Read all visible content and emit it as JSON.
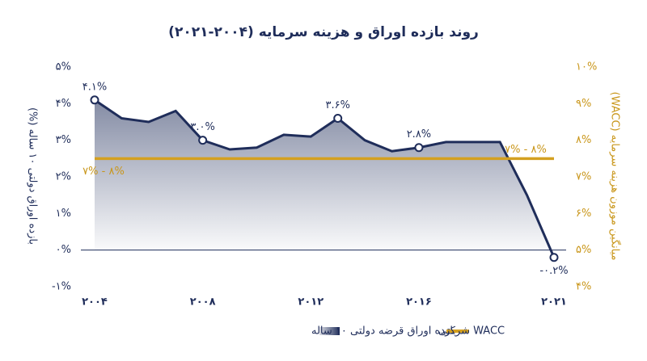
{
  "chart_data": {
    "type": "line",
    "title": "روند بازده اوراق و هزینه سرمایه (۲۰۰۴-۲۰۲۱)",
    "y_label": "بازده اوراق دولتی ۱۰ ساله (%)",
    "y2_label": "میانگین موزون هزینه سرمایه (WACC)",
    "annotation": "۷% - ۸%",
    "x": [
      2004,
      2005,
      2006,
      2007,
      2008,
      2009,
      2010,
      2011,
      2012,
      2013,
      2014,
      2015,
      2016,
      2017,
      2018,
      2019,
      2020,
      2021
    ],
    "xlim": [
      2004,
      2021
    ],
    "xticks": [
      {
        "value": 2004,
        "label": "۲۰۰۴"
      },
      {
        "value": 2008,
        "label": "۲۰۰۸"
      },
      {
        "value": 2012,
        "label": "۲۰۱۲"
      },
      {
        "value": 2016,
        "label": "۲۰۱۶"
      },
      {
        "value": 2021,
        "label": "۲۰۲۱"
      }
    ],
    "ylim": [
      -1,
      5
    ],
    "yticks": [
      {
        "value": -1,
        "label": "-۱%"
      },
      {
        "value": 0,
        "label": "۰%"
      },
      {
        "value": 1,
        "label": "۱%"
      },
      {
        "value": 2,
        "label": "۲%"
      },
      {
        "value": 3,
        "label": "۳%"
      },
      {
        "value": 4,
        "label": "۴%"
      },
      {
        "value": 5,
        "label": "۵%"
      }
    ],
    "y2lim": [
      4,
      10
    ],
    "y2ticks": [
      {
        "value": 4,
        "label": "۴%"
      },
      {
        "value": 5,
        "label": "۵%"
      },
      {
        "value": 6,
        "label": "۶%"
      },
      {
        "value": 7,
        "label": "۷%"
      },
      {
        "value": 8,
        "label": "۸%"
      },
      {
        "value": 9,
        "label": "۹%"
      },
      {
        "value": 10,
        "label": "۱۰%"
      }
    ],
    "series": [
      {
        "name": "بازده اوراق قرضه دولتی ۱۰ ساله",
        "color": "#1f2d5a",
        "values": [
          4.1,
          3.6,
          3.5,
          3.8,
          3.0,
          2.75,
          2.8,
          3.15,
          3.1,
          3.6,
          3.0,
          2.7,
          2.8,
          2.95,
          2.95,
          2.95,
          1.5,
          -0.2
        ],
        "value_labels": [
          "۴.۱%",
          null,
          null,
          null,
          "۳.۰%",
          null,
          null,
          null,
          null,
          "۳.۶%",
          null,
          null,
          "۲.۸%",
          null,
          null,
          null,
          null,
          "-۰.۲%"
        ]
      },
      {
        "name": "WACC شرکتی",
        "color": "#d4a020",
        "axis": "y2",
        "values": [
          7.5,
          7.5,
          7.5,
          7.5,
          7.5,
          7.5,
          7.5,
          7.5,
          7.5,
          7.5,
          7.5,
          7.5,
          7.5,
          7.5,
          7.5,
          7.5,
          7.5,
          7.5
        ]
      }
    ]
  }
}
